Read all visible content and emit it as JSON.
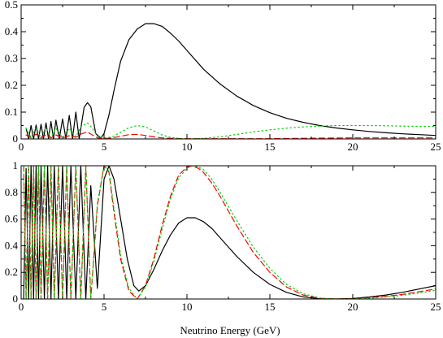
{
  "chart_data": [
    {
      "type": "line",
      "title": "",
      "xlabel": "",
      "ylabel": "",
      "xlim": [
        0,
        25
      ],
      "ylim": [
        0,
        0.5
      ],
      "grid": false,
      "xticks": [
        0,
        5,
        10,
        15,
        20,
        25
      ],
      "yticks": [
        0,
        0.1,
        0.2,
        0.3,
        0.4,
        0.5
      ],
      "xtick_labels": [
        "0",
        "5",
        "10",
        "15",
        "20",
        "25"
      ],
      "ytick_labels": [
        "0",
        "0.1",
        "0.2",
        "0.3",
        "0.4",
        "0.5"
      ],
      "series": [
        {
          "color": "#000000",
          "dash": "solid",
          "x": [
            0.3,
            0.45,
            0.6,
            0.75,
            0.9,
            1.05,
            1.2,
            1.35,
            1.5,
            1.65,
            1.8,
            1.95,
            2.1,
            2.3,
            2.5,
            2.7,
            2.9,
            3.1,
            3.3,
            3.5,
            3.8,
            4.0,
            4.2,
            4.5,
            4.8,
            5.0,
            5.3,
            5.6,
            6.0,
            6.5,
            7.0,
            7.5,
            8.0,
            8.5,
            9.0,
            9.5,
            10.0,
            11.0,
            12.0,
            13.0,
            14.0,
            15.0,
            16.0,
            17.0,
            18.0,
            19.0,
            20.0,
            21.0,
            22.0,
            23.0,
            24.0,
            25.0
          ],
          "y": [
            0.04,
            0.0,
            0.05,
            0.0,
            0.052,
            0.0,
            0.055,
            0.0,
            0.06,
            0.0,
            0.065,
            0.0,
            0.07,
            0.0,
            0.075,
            0.0,
            0.088,
            0.0,
            0.1,
            0.0,
            0.118,
            0.135,
            0.12,
            0.02,
            0.003,
            0.02,
            0.09,
            0.18,
            0.29,
            0.37,
            0.41,
            0.43,
            0.43,
            0.42,
            0.395,
            0.365,
            0.33,
            0.26,
            0.205,
            0.16,
            0.125,
            0.098,
            0.077,
            0.062,
            0.05,
            0.041,
            0.034,
            0.028,
            0.023,
            0.019,
            0.016,
            0.013
          ]
        },
        {
          "color": "#ff0000",
          "dash": "dashed",
          "x": [
            0.3,
            0.6,
            0.9,
            1.2,
            1.5,
            1.8,
            2.1,
            2.5,
            2.9,
            3.3,
            3.6,
            4.0,
            4.3,
            4.6,
            5.0,
            5.5,
            6.0,
            6.5,
            7.0,
            7.5,
            8.0,
            8.5,
            9.0,
            10.0,
            12.0,
            15.0,
            18.0,
            20.0,
            22.0,
            25.0
          ],
          "y": [
            0.015,
            0.004,
            0.018,
            0.004,
            0.016,
            0.004,
            0.015,
            0.003,
            0.012,
            0.006,
            0.018,
            0.026,
            0.015,
            0.004,
            0.001,
            0.004,
            0.01,
            0.016,
            0.017,
            0.013,
            0.008,
            0.004,
            0.002,
            0.001,
            0.001,
            0.001,
            0.003,
            0.004,
            0.004,
            0.004
          ]
        },
        {
          "color": "#00d000",
          "dash": "dotted",
          "x": [
            0.3,
            0.6,
            0.9,
            1.2,
            1.5,
            1.8,
            2.1,
            2.5,
            2.9,
            3.3,
            3.6,
            4.0,
            4.3,
            4.6,
            5.0,
            5.5,
            6.0,
            6.5,
            7.0,
            7.5,
            8.0,
            8.5,
            9.0,
            9.5,
            10.0,
            11.0,
            12.0,
            13.0,
            14.0,
            15.0,
            16.0,
            17.0,
            18.0,
            19.0,
            20.0,
            21.0,
            22.0,
            23.0,
            24.0,
            25.0
          ],
          "y": [
            0.04,
            0.005,
            0.04,
            0.005,
            0.042,
            0.005,
            0.04,
            0.004,
            0.04,
            0.008,
            0.045,
            0.06,
            0.04,
            0.01,
            0.003,
            0.008,
            0.025,
            0.042,
            0.05,
            0.045,
            0.03,
            0.015,
            0.006,
            0.002,
            0.0,
            0.002,
            0.008,
            0.017,
            0.026,
            0.034,
            0.04,
            0.045,
            0.048,
            0.05,
            0.05,
            0.05,
            0.049,
            0.048,
            0.047,
            0.047
          ]
        }
      ]
    },
    {
      "type": "line",
      "title": "",
      "xlabel": "Neutrino Energy (GeV)",
      "ylabel": "",
      "xlim": [
        0,
        25
      ],
      "ylim": [
        0,
        1
      ],
      "grid": false,
      "xticks": [
        0,
        5,
        10,
        15,
        20,
        25
      ],
      "yticks": [
        0,
        0.2,
        0.4,
        0.6,
        0.8,
        1
      ],
      "xtick_labels": [
        "0",
        "5",
        "10",
        "15",
        "20",
        "25"
      ],
      "ytick_labels": [
        "0",
        "0.2",
        "0.4",
        "0.6",
        "0.8",
        "1"
      ],
      "series": [
        {
          "color": "#000000",
          "dash": "solid",
          "x": [
            0.15,
            0.3,
            0.45,
            0.6,
            0.75,
            0.9,
            1.05,
            1.2,
            1.4,
            1.6,
            1.8,
            2.0,
            2.25,
            2.5,
            2.75,
            3.0,
            3.3,
            3.6,
            3.9,
            4.2,
            4.6,
            5.0,
            5.3,
            5.6,
            6.0,
            6.4,
            6.8,
            7.1,
            7.5,
            8.0,
            8.5,
            9.0,
            9.5,
            10.0,
            10.5,
            11.0,
            11.5,
            12.0,
            13.0,
            14.0,
            15.0,
            16.0,
            17.0,
            18.0,
            19.0,
            20.0,
            21.0,
            22.0,
            23.0,
            24.0,
            25.0
          ],
          "y": [
            0.0,
            0.98,
            0.0,
            1.0,
            0.0,
            1.0,
            0.0,
            1.0,
            0.0,
            1.0,
            0.0,
            1.0,
            0.0,
            1.0,
            0.0,
            1.0,
            0.0,
            1.0,
            0.0,
            0.85,
            0.08,
            0.9,
            1.0,
            0.9,
            0.6,
            0.3,
            0.1,
            0.06,
            0.1,
            0.22,
            0.36,
            0.48,
            0.57,
            0.61,
            0.61,
            0.58,
            0.53,
            0.46,
            0.32,
            0.2,
            0.11,
            0.05,
            0.016,
            0.002,
            0.0,
            0.004,
            0.015,
            0.03,
            0.05,
            0.075,
            0.1
          ]
        },
        {
          "color": "#ff0000",
          "dash": "dashed",
          "x": [
            0.15,
            0.3,
            0.45,
            0.6,
            0.75,
            0.9,
            1.05,
            1.2,
            1.4,
            1.6,
            1.8,
            2.0,
            2.25,
            2.5,
            2.75,
            3.0,
            3.3,
            3.6,
            3.9,
            4.2,
            4.6,
            5.0,
            5.3,
            5.6,
            6.0,
            6.5,
            7.0,
            7.5,
            8.0,
            8.5,
            9.0,
            9.5,
            10.0,
            10.3,
            10.7,
            11.0,
            11.5,
            12.0,
            13.0,
            14.0,
            15.0,
            16.0,
            17.0,
            18.0,
            19.0,
            20.0,
            21.0,
            22.0,
            23.0,
            24.0,
            25.0
          ],
          "y": [
            1.0,
            0.0,
            1.0,
            0.0,
            1.0,
            0.0,
            1.0,
            0.0,
            1.0,
            0.0,
            1.0,
            0.0,
            1.0,
            0.0,
            1.0,
            0.0,
            1.0,
            0.0,
            1.0,
            0.0,
            0.7,
            1.0,
            0.95,
            0.65,
            0.3,
            0.06,
            0.0,
            0.1,
            0.3,
            0.55,
            0.77,
            0.93,
            0.99,
            1.0,
            0.98,
            0.95,
            0.87,
            0.77,
            0.55,
            0.35,
            0.2,
            0.09,
            0.03,
            0.005,
            0.0,
            0.002,
            0.01,
            0.02,
            0.035,
            0.055,
            0.075
          ]
        },
        {
          "color": "#00d000",
          "dash": "dotted",
          "x": [
            0.15,
            0.3,
            0.45,
            0.6,
            0.75,
            0.9,
            1.05,
            1.2,
            1.4,
            1.6,
            1.8,
            2.0,
            2.25,
            2.5,
            2.75,
            3.0,
            3.3,
            3.6,
            3.9,
            4.2,
            4.6,
            5.0,
            5.3,
            5.6,
            6.0,
            6.5,
            7.0,
            7.5,
            8.0,
            8.5,
            9.0,
            9.5,
            10.0,
            10.3,
            10.7,
            11.0,
            11.5,
            12.0,
            13.0,
            14.0,
            15.0,
            16.0,
            17.0,
            18.0,
            19.0,
            20.0,
            21.0,
            22.0,
            23.0,
            24.0,
            25.0
          ],
          "y": [
            1.0,
            0.0,
            1.0,
            0.0,
            1.0,
            0.0,
            1.0,
            0.0,
            1.0,
            0.0,
            1.0,
            0.0,
            1.0,
            0.0,
            1.0,
            0.0,
            1.0,
            0.0,
            1.0,
            0.0,
            0.72,
            1.0,
            0.96,
            0.68,
            0.33,
            0.08,
            0.0,
            0.09,
            0.28,
            0.52,
            0.75,
            0.91,
            0.98,
            1.0,
            0.99,
            0.97,
            0.9,
            0.8,
            0.59,
            0.39,
            0.23,
            0.11,
            0.04,
            0.008,
            0.0,
            0.001,
            0.006,
            0.015,
            0.028,
            0.045,
            0.065
          ]
        }
      ]
    }
  ]
}
